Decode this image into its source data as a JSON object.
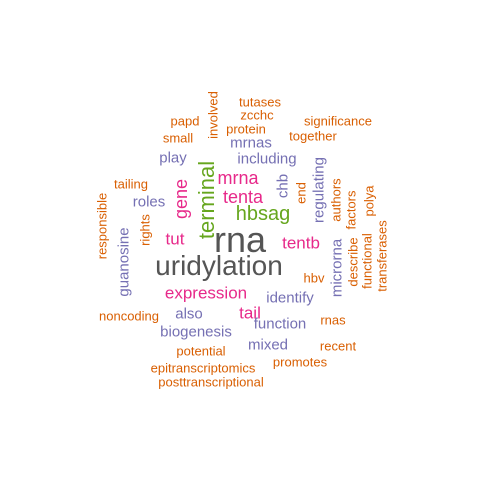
{
  "colors": {
    "orange": "#d95f02",
    "purple": "#7570b3",
    "magenta": "#e7298a",
    "green": "#66a61e",
    "gray": "#555555"
  },
  "words": [
    {
      "text": "rna",
      "color": "gray",
      "weight": 10
    },
    {
      "text": "uridylation",
      "color": "gray",
      "weight": 9
    },
    {
      "text": "terminal",
      "color": "green",
      "weight": 6
    },
    {
      "text": "hbsag",
      "color": "green",
      "weight": 6
    },
    {
      "text": "gene",
      "color": "magenta",
      "weight": 5
    },
    {
      "text": "tenta",
      "color": "magenta",
      "weight": 5
    },
    {
      "text": "mrna",
      "color": "magenta",
      "weight": 5
    },
    {
      "text": "tut",
      "color": "magenta",
      "weight": 5
    },
    {
      "text": "tentb",
      "color": "magenta",
      "weight": 5
    },
    {
      "text": "expression",
      "color": "magenta",
      "weight": 5
    },
    {
      "text": "tail",
      "color": "magenta",
      "weight": 5
    },
    {
      "text": "including",
      "color": "purple",
      "weight": 4
    },
    {
      "text": "mrnas",
      "color": "purple",
      "weight": 4
    },
    {
      "text": "play",
      "color": "purple",
      "weight": 4
    },
    {
      "text": "roles",
      "color": "purple",
      "weight": 4
    },
    {
      "text": "chb",
      "color": "purple",
      "weight": 4
    },
    {
      "text": "regulating",
      "color": "purple",
      "weight": 4
    },
    {
      "text": "guanosine",
      "color": "purple",
      "weight": 4
    },
    {
      "text": "identify",
      "color": "purple",
      "weight": 4
    },
    {
      "text": "microrna",
      "color": "purple",
      "weight": 4
    },
    {
      "text": "also",
      "color": "purple",
      "weight": 4
    },
    {
      "text": "function",
      "color": "purple",
      "weight": 4
    },
    {
      "text": "biogenesis",
      "color": "purple",
      "weight": 4
    },
    {
      "text": "mixed",
      "color": "purple",
      "weight": 4
    },
    {
      "text": "tutases",
      "color": "orange",
      "weight": 3
    },
    {
      "text": "involved",
      "color": "orange",
      "weight": 3
    },
    {
      "text": "zcchc",
      "color": "orange",
      "weight": 3
    },
    {
      "text": "papd",
      "color": "orange",
      "weight": 3
    },
    {
      "text": "significance",
      "color": "orange",
      "weight": 3
    },
    {
      "text": "protein",
      "color": "orange",
      "weight": 3
    },
    {
      "text": "small",
      "color": "orange",
      "weight": 3
    },
    {
      "text": "together",
      "color": "orange",
      "weight": 3
    },
    {
      "text": "tailing",
      "color": "orange",
      "weight": 3
    },
    {
      "text": "responsible",
      "color": "orange",
      "weight": 3
    },
    {
      "text": "rights",
      "color": "orange",
      "weight": 3
    },
    {
      "text": "end",
      "color": "orange",
      "weight": 3
    },
    {
      "text": "authors",
      "color": "orange",
      "weight": 3
    },
    {
      "text": "factors",
      "color": "orange",
      "weight": 3
    },
    {
      "text": "polya",
      "color": "orange",
      "weight": 3
    },
    {
      "text": "describe",
      "color": "orange",
      "weight": 3
    },
    {
      "text": "functional",
      "color": "orange",
      "weight": 3
    },
    {
      "text": "transferases",
      "color": "orange",
      "weight": 3
    },
    {
      "text": "hbv",
      "color": "orange",
      "weight": 3
    },
    {
      "text": "noncoding",
      "color": "orange",
      "weight": 3
    },
    {
      "text": "rnas",
      "color": "orange",
      "weight": 3
    },
    {
      "text": "recent",
      "color": "orange",
      "weight": 3
    },
    {
      "text": "potential",
      "color": "orange",
      "weight": 3
    },
    {
      "text": "promotes",
      "color": "orange",
      "weight": 3
    },
    {
      "text": "epitranscriptomics",
      "color": "orange",
      "weight": 3
    },
    {
      "text": "posttranscriptional",
      "color": "orange",
      "weight": 3
    }
  ]
}
